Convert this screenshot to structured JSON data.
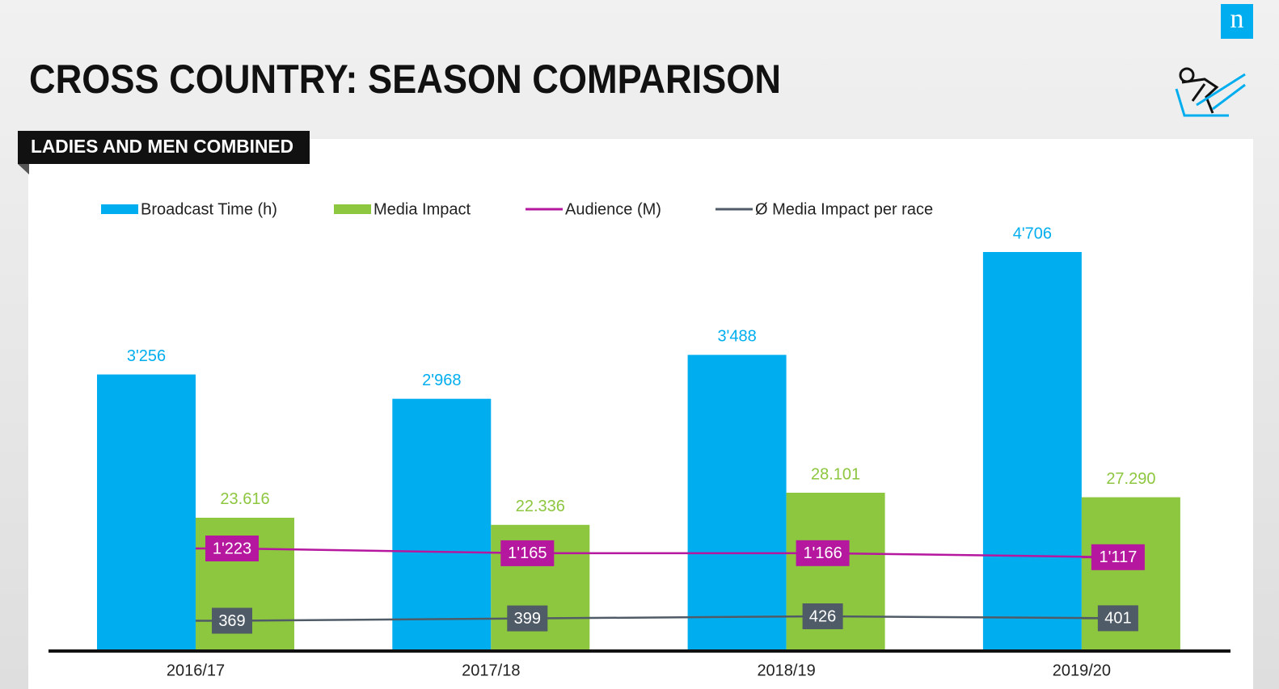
{
  "header": {
    "title": "CROSS COUNTRY: SEASON COMPARISON",
    "tag": "LADIES AND MEN COMBINED",
    "logo": "n"
  },
  "chart_data": {
    "type": "bar",
    "categories": [
      "2016/17",
      "2017/18",
      "2018/19",
      "2019/20"
    ],
    "series": [
      {
        "name": "Broadcast Time (h)",
        "type": "bar",
        "color": "#00aeef",
        "values": [
          3256,
          2968,
          3488,
          4706
        ],
        "value_labels": [
          "3'256",
          "2'968",
          "3'488",
          "4'706"
        ]
      },
      {
        "name": "Media Impact",
        "type": "bar",
        "color": "#8dc63f",
        "values": [
          23616,
          22336,
          28101,
          27290
        ],
        "value_labels": [
          "23.616",
          "22.336",
          "28.101",
          "27.290"
        ]
      },
      {
        "name": "Audience (M)",
        "type": "line",
        "color": "#b5179e",
        "values": [
          1223,
          1165,
          1166,
          1117
        ],
        "value_labels": [
          "1'223",
          "1'165",
          "1'166",
          "1'117"
        ]
      },
      {
        "name": "Ø Media Impact per race",
        "type": "line",
        "color": "#4f5b66",
        "values": [
          369,
          399,
          426,
          401
        ]
      }
    ]
  }
}
